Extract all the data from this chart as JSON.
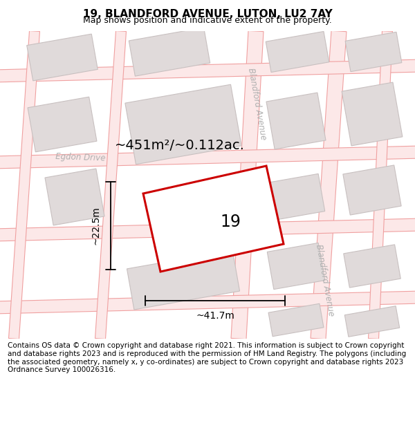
{
  "title": "19, BLANDFORD AVENUE, LUTON, LU2 7AY",
  "subtitle": "Map shows position and indicative extent of the property.",
  "footer": "Contains OS data © Crown copyright and database right 2021. This information is subject to Crown copyright and database rights 2023 and is reproduced with the permission of HM Land Registry. The polygons (including the associated geometry, namely x, y co-ordinates) are subject to Crown copyright and database rights 2023 Ordnance Survey 100026316.",
  "map_bg": "#ffffff",
  "road_line_color": "#f0a8a8",
  "road_fill_color": "#fce8e8",
  "building_face_color": "#e0dada",
  "building_edge_color": "#c8c0c0",
  "highlight_edge": "#cc0000",
  "highlight_face": "#ffffff",
  "street_label_color": "#b0b0b0",
  "dim_color": "#111111",
  "area_label": "~451m²/~0.112ac.",
  "number_label": "19",
  "dim_width_label": "~41.7m",
  "dim_height_label": "~22.5m",
  "egdon_drive_label": "Egdon Drive",
  "blandford_avenue_label_top": "Blandford Avenue",
  "blandford_avenue_label_bot": "Blandford Avenue",
  "title_fontsize": 11,
  "subtitle_fontsize": 9,
  "footer_fontsize": 7.5,
  "area_fontsize": 14,
  "number_fontsize": 17,
  "dim_fontsize": 10,
  "street_fontsize": 8.5,
  "figsize": [
    6.0,
    6.25
  ],
  "dpi": 100
}
